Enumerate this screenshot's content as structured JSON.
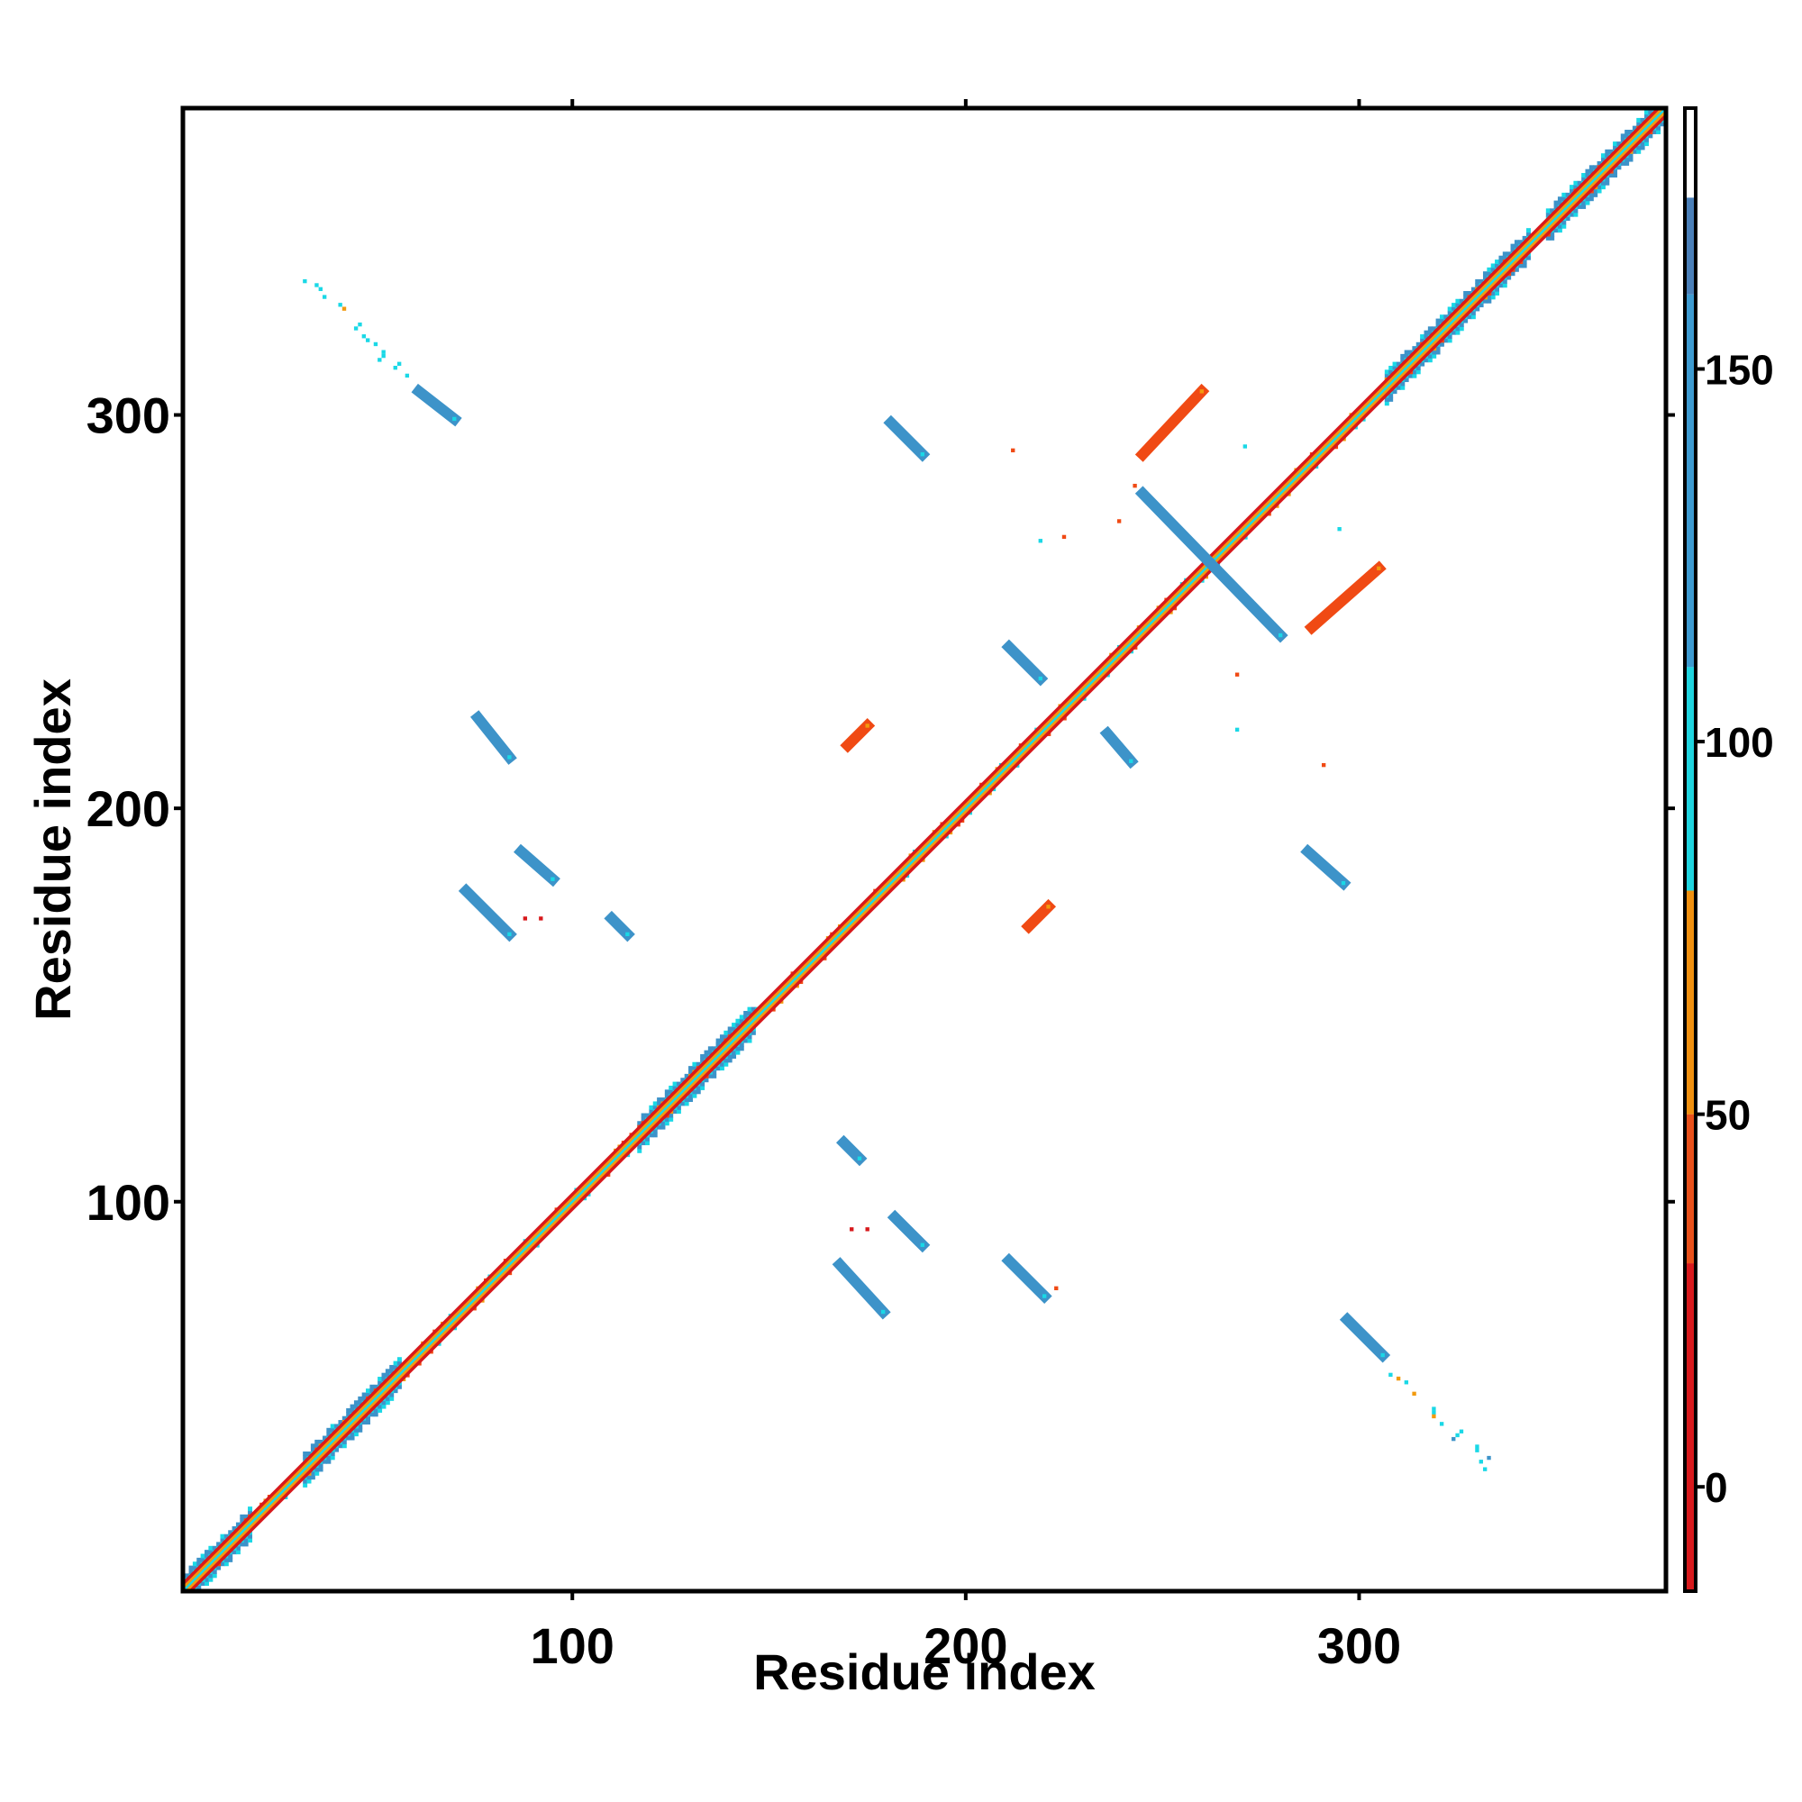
{
  "chart_data": {
    "type": "heatmap",
    "title": "",
    "xlabel": "Residue index",
    "ylabel": "Residue index",
    "xlim": [
      1,
      378
    ],
    "ylim": [
      1,
      378
    ],
    "xticks": [
      100,
      200,
      300
    ],
    "yticks": [
      100,
      200,
      300
    ],
    "grid": false,
    "colorbar": {
      "range": [
        -14,
        185
      ],
      "ticks": [
        0,
        50,
        100,
        150
      ],
      "bands": [
        {
          "from": -14,
          "to": 30,
          "color": "#d7191c"
        },
        {
          "from": 30,
          "to": 50,
          "color": "#e8501a"
        },
        {
          "from": 50,
          "to": 80,
          "color": "#f0900f"
        },
        {
          "from": 80,
          "to": 110,
          "color": "#1fd5e0"
        },
        {
          "from": 110,
          "to": 160,
          "color": "#3d9ad0"
        },
        {
          "from": 160,
          "to": 173,
          "color": "#4a7fb8"
        },
        {
          "from": 173,
          "to": 185,
          "color": "#ffffff"
        }
      ]
    },
    "colors": {
      "red": "#d7191c",
      "orange_red": "#f04a14",
      "orange": "#f29a0e",
      "cyan": "#1ad8e6",
      "blue": "#3d93c9",
      "axis": "#000000"
    },
    "diagonal": {
      "from": 1,
      "to": 378,
      "colors": [
        "#f29a0e",
        "#d7191c",
        "#1ad8e6"
      ]
    },
    "helix_bands": [
      {
        "from": 2,
        "to": 18
      },
      {
        "from": 32,
        "to": 56
      },
      {
        "from": 117,
        "to": 137
      },
      {
        "from": 137,
        "to": 146
      },
      {
        "from": 307,
        "to": 343
      },
      {
        "from": 348,
        "to": 378
      }
    ],
    "segments": [
      {
        "i0": 61,
        "j0": 306,
        "i1": 70,
        "j1": 299,
        "color": "#3d93c9"
      },
      {
        "i0": 181,
        "j0": 298,
        "i1": 189,
        "j1": 290,
        "color": "#3d93c9"
      },
      {
        "i0": 245,
        "j0": 290,
        "i1": 260,
        "j1": 306,
        "color": "#f04a14"
      },
      {
        "i0": 245,
        "j0": 280,
        "i1": 280,
        "j1": 244,
        "color": "#3d93c9"
      },
      {
        "i0": 288,
        "j0": 246,
        "i1": 305,
        "j1": 261,
        "color": "#f04a14"
      },
      {
        "i0": 211,
        "j0": 241,
        "i1": 219,
        "j1": 233,
        "color": "#3d93c9"
      },
      {
        "i0": 236,
        "j0": 219,
        "i1": 242,
        "j1": 212,
        "color": "#3d93c9"
      },
      {
        "i0": 76,
        "j0": 223,
        "i1": 84,
        "j1": 213,
        "color": "#3d93c9"
      },
      {
        "i0": 87,
        "j0": 189,
        "i1": 95,
        "j1": 182,
        "color": "#3d93c9"
      },
      {
        "i0": 73,
        "j0": 179,
        "i1": 84,
        "j1": 168,
        "color": "#3d93c9"
      },
      {
        "i0": 110,
        "j0": 172,
        "i1": 114,
        "j1": 168,
        "color": "#3d93c9"
      },
      {
        "i0": 287,
        "j0": 189,
        "i1": 296,
        "j1": 181,
        "color": "#3d93c9"
      },
      {
        "i0": 169,
        "j0": 115,
        "i1": 173,
        "j1": 111,
        "color": "#3d93c9"
      },
      {
        "i0": 182,
        "j0": 96,
        "i1": 189,
        "j1": 89,
        "color": "#3d93c9"
      },
      {
        "i0": 168,
        "j0": 84,
        "i1": 179,
        "j1": 72,
        "color": "#3d93c9"
      },
      {
        "i0": 211,
        "j0": 85,
        "i1": 220,
        "j1": 76,
        "color": "#3d93c9"
      },
      {
        "i0": 297,
        "j0": 70,
        "i1": 306,
        "j1": 61,
        "color": "#3d93c9"
      },
      {
        "i0": 170,
        "j0": 216,
        "i1": 175,
        "j1": 221,
        "color": "#f04a14"
      },
      {
        "i0": 216,
        "j0": 170,
        "i1": 221,
        "j1": 175,
        "color": "#f04a14"
      }
    ],
    "scatter_lines": [
      {
        "i0": 33,
        "j0": 334,
        "i1": 58,
        "j1": 309
      },
      {
        "i0": 309,
        "j0": 56,
        "i1": 334,
        "j1": 32
      }
    ],
    "specks": [
      {
        "i": 212,
        "j": 291,
        "color": "#f04a14"
      },
      {
        "i": 271,
        "j": 292,
        "color": "#1ad8e6"
      },
      {
        "i": 225,
        "j": 269,
        "color": "#f04a14"
      },
      {
        "i": 219,
        "j": 268,
        "color": "#1ad8e6"
      },
      {
        "i": 295,
        "j": 271,
        "color": "#1ad8e6"
      },
      {
        "i": 269,
        "j": 234,
        "color": "#f04a14"
      },
      {
        "i": 269,
        "j": 220,
        "color": "#1ad8e6"
      },
      {
        "i": 291,
        "j": 211,
        "color": "#f04a14"
      },
      {
        "i": 88,
        "j": 172,
        "color": "#d7191c"
      },
      {
        "i": 92,
        "j": 172,
        "color": "#d7191c"
      },
      {
        "i": 171,
        "j": 93,
        "color": "#d7191c"
      },
      {
        "i": 175,
        "j": 93,
        "color": "#d7191c"
      },
      {
        "i": 223,
        "j": 78,
        "color": "#f04a14"
      },
      {
        "i": 239,
        "j": 273,
        "color": "#f04a14"
      },
      {
        "i": 243,
        "j": 282,
        "color": "#f04a14"
      }
    ]
  }
}
